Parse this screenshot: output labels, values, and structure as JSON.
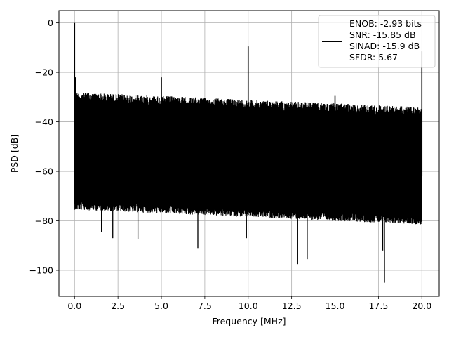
{
  "chart_data": {
    "type": "line",
    "xlabel": "Frequency [MHz]",
    "ylabel": "PSD [dB]",
    "xlim": [
      -0.9,
      21.0
    ],
    "ylim": [
      -110.5,
      5.0
    ],
    "xticks": [
      0.0,
      2.5,
      5.0,
      7.5,
      10.0,
      12.5,
      15.0,
      17.5,
      20.0
    ],
    "xtick_labels": [
      "0.0",
      "2.5",
      "5.0",
      "7.5",
      "10.0",
      "12.5",
      "15.0",
      "17.5",
      "20.0"
    ],
    "yticks": [
      0,
      -20,
      -40,
      -60,
      -80,
      -100
    ],
    "ytick_labels": [
      "0",
      "−20",
      "−40",
      "−60",
      "−80",
      "−100"
    ],
    "grid": true,
    "legend_position": "top-right",
    "series_color": "#000000",
    "legend": {
      "line_color": "#000000",
      "lines": [
        "ENOB: -2.93 bits",
        "SNR: -15.85 dB",
        "SINAD: -15.9 dB",
        "SFDR: 5.67"
      ]
    },
    "spectrum": {
      "x_start": 0.0,
      "x_end": 20.0,
      "num_points": 1400,
      "noise_upper_start": -28,
      "noise_upper_end": -34,
      "noise_lower_start": -72,
      "noise_lower_end": -78
    },
    "peaks": [
      {
        "x": 0.0,
        "y": 0.0
      },
      {
        "x": 5.0,
        "y": -22
      },
      {
        "x": 10.0,
        "y": -9.5
      },
      {
        "x": 15.0,
        "y": -29.5
      },
      {
        "x": 20.0,
        "y": -11.5
      }
    ],
    "dips": [
      {
        "x": 1.55,
        "y": -84.5
      },
      {
        "x": 2.2,
        "y": -87
      },
      {
        "x": 3.65,
        "y": -87.5
      },
      {
        "x": 7.1,
        "y": -91
      },
      {
        "x": 9.9,
        "y": -87
      },
      {
        "x": 12.85,
        "y": -97.5
      },
      {
        "x": 13.4,
        "y": -95.5
      },
      {
        "x": 17.75,
        "y": -92
      },
      {
        "x": 17.85,
        "y": -105
      }
    ]
  }
}
